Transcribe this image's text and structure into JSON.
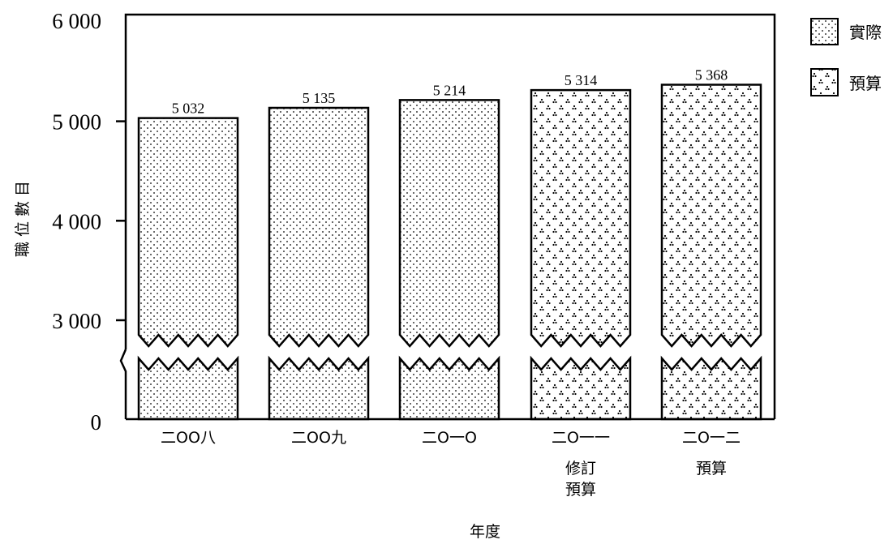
{
  "chart_data": {
    "type": "bar",
    "xlabel": "年度",
    "ylabel": "職 位 數 目",
    "ylim": [
      0,
      6000
    ],
    "broken_axis": true,
    "y_ticks": [
      {
        "value": 0,
        "label": "0"
      },
      {
        "value": 3000,
        "label": "3 000"
      },
      {
        "value": 4000,
        "label": "4 000"
      },
      {
        "value": 5000,
        "label": "5 000"
      },
      {
        "value": 6000,
        "label": "6 000"
      }
    ],
    "categories": [
      {
        "label": "二OO八",
        "sub": ""
      },
      {
        "label": "二OO九",
        "sub": ""
      },
      {
        "label": "二O一O",
        "sub": ""
      },
      {
        "label": "二O一一",
        "sub": "修訂\n預算"
      },
      {
        "label": "二O一二",
        "sub": "預算"
      }
    ],
    "values": [
      5032,
      5135,
      5214,
      5314,
      5368
    ],
    "value_labels": [
      "5 032",
      "5 135",
      "5 214",
      "5 314",
      "5 368"
    ],
    "bar_series": [
      "actual",
      "actual",
      "actual",
      "budget",
      "budget"
    ],
    "legend": [
      {
        "key": "actual",
        "label": "實際"
      },
      {
        "key": "budget",
        "label": "預算"
      }
    ],
    "legend_position": "top-right",
    "grid": false
  }
}
